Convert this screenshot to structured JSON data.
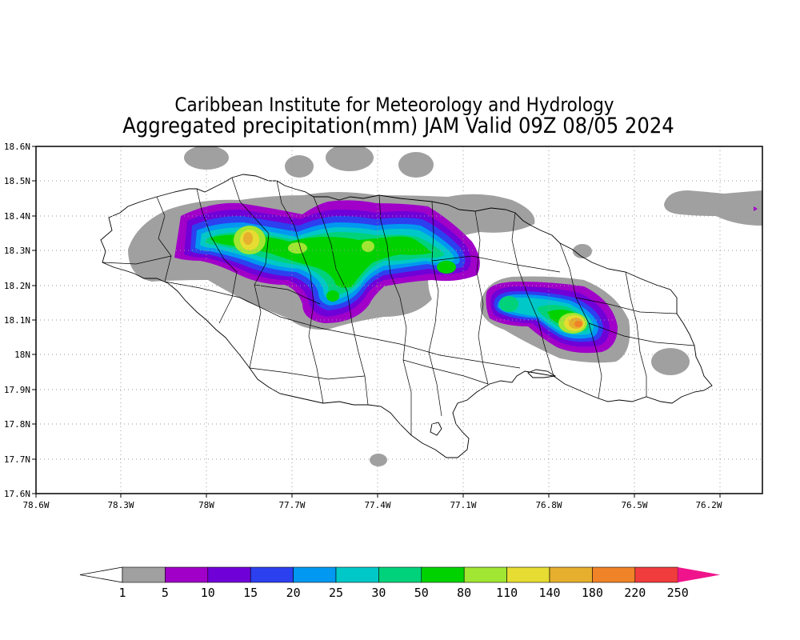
{
  "title_line1": "Caribbean Institute for Meteorology and Hydrology",
  "title_line2": "Aggregated precipitation(mm) JAM Valid 09Z 08/05 2024",
  "chart_data": {
    "type": "heatmap",
    "title": "Aggregated precipitation(mm) JAM Valid 09Z 08/05 2024",
    "x_ticks": [
      "78.6W",
      "78.3W",
      "78W",
      "77.7W",
      "77.4W",
      "77.1W",
      "76.8W",
      "76.5W",
      "76.2W"
    ],
    "y_ticks": [
      "18.6N",
      "18.5N",
      "18.4N",
      "18.3N",
      "18.2N",
      "18.1N",
      "18N",
      "17.9N",
      "17.8N",
      "17.7N",
      "17.6N"
    ],
    "xlim": [
      -78.6,
      -76.05
    ],
    "ylim": [
      17.6,
      18.6
    ],
    "grid": true,
    "colorbar": {
      "levels": [
        "1",
        "5",
        "10",
        "15",
        "20",
        "25",
        "30",
        "50",
        "80",
        "110",
        "140",
        "180",
        "220",
        "250"
      ],
      "colors": [
        "#ffffff",
        "#a0a0a0",
        "#a000c8",
        "#7000d8",
        "#2c40f0",
        "#0098f0",
        "#00c8c8",
        "#00d27c",
        "#00d200",
        "#a0e632",
        "#e6dc32",
        "#e6af2d",
        "#f08228",
        "#f03c3c",
        "#f0148c"
      ]
    },
    "max_precip_areas": [
      {
        "lon": -77.85,
        "lat": 18.33,
        "class": "110-140"
      },
      {
        "lon": -76.62,
        "lat": 18.09,
        "class": "180-220"
      }
    ]
  }
}
